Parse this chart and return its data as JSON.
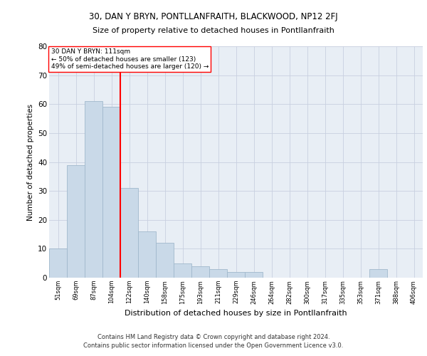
{
  "title1": "30, DAN Y BRYN, PONTLLANFRAITH, BLACKWOOD, NP12 2FJ",
  "title2": "Size of property relative to detached houses in Pontllanfraith",
  "xlabel": "Distribution of detached houses by size in Pontllanfraith",
  "ylabel": "Number of detached properties",
  "categories": [
    "51sqm",
    "69sqm",
    "87sqm",
    "104sqm",
    "122sqm",
    "140sqm",
    "158sqm",
    "175sqm",
    "193sqm",
    "211sqm",
    "229sqm",
    "246sqm",
    "264sqm",
    "282sqm",
    "300sqm",
    "317sqm",
    "335sqm",
    "353sqm",
    "371sqm",
    "388sqm",
    "406sqm"
  ],
  "values": [
    10,
    39,
    61,
    59,
    31,
    16,
    12,
    5,
    4,
    3,
    2,
    2,
    0,
    0,
    0,
    0,
    0,
    0,
    3,
    0,
    0
  ],
  "bar_color": "#c9d9e8",
  "bar_edgecolor": "#a0b8cc",
  "redline_x": 3.5,
  "annotation_line1": "30 DAN Y BRYN: 111sqm",
  "annotation_line2": "← 50% of detached houses are smaller (123)",
  "annotation_line3": "49% of semi-detached houses are larger (120) →",
  "ylim": [
    0,
    80
  ],
  "yticks": [
    0,
    10,
    20,
    30,
    40,
    50,
    60,
    70,
    80
  ],
  "footer1": "Contains HM Land Registry data © Crown copyright and database right 2024.",
  "footer2": "Contains public sector information licensed under the Open Government Licence v3.0.",
  "grid_color": "#c8d0e0",
  "bg_color": "#e8eef5"
}
